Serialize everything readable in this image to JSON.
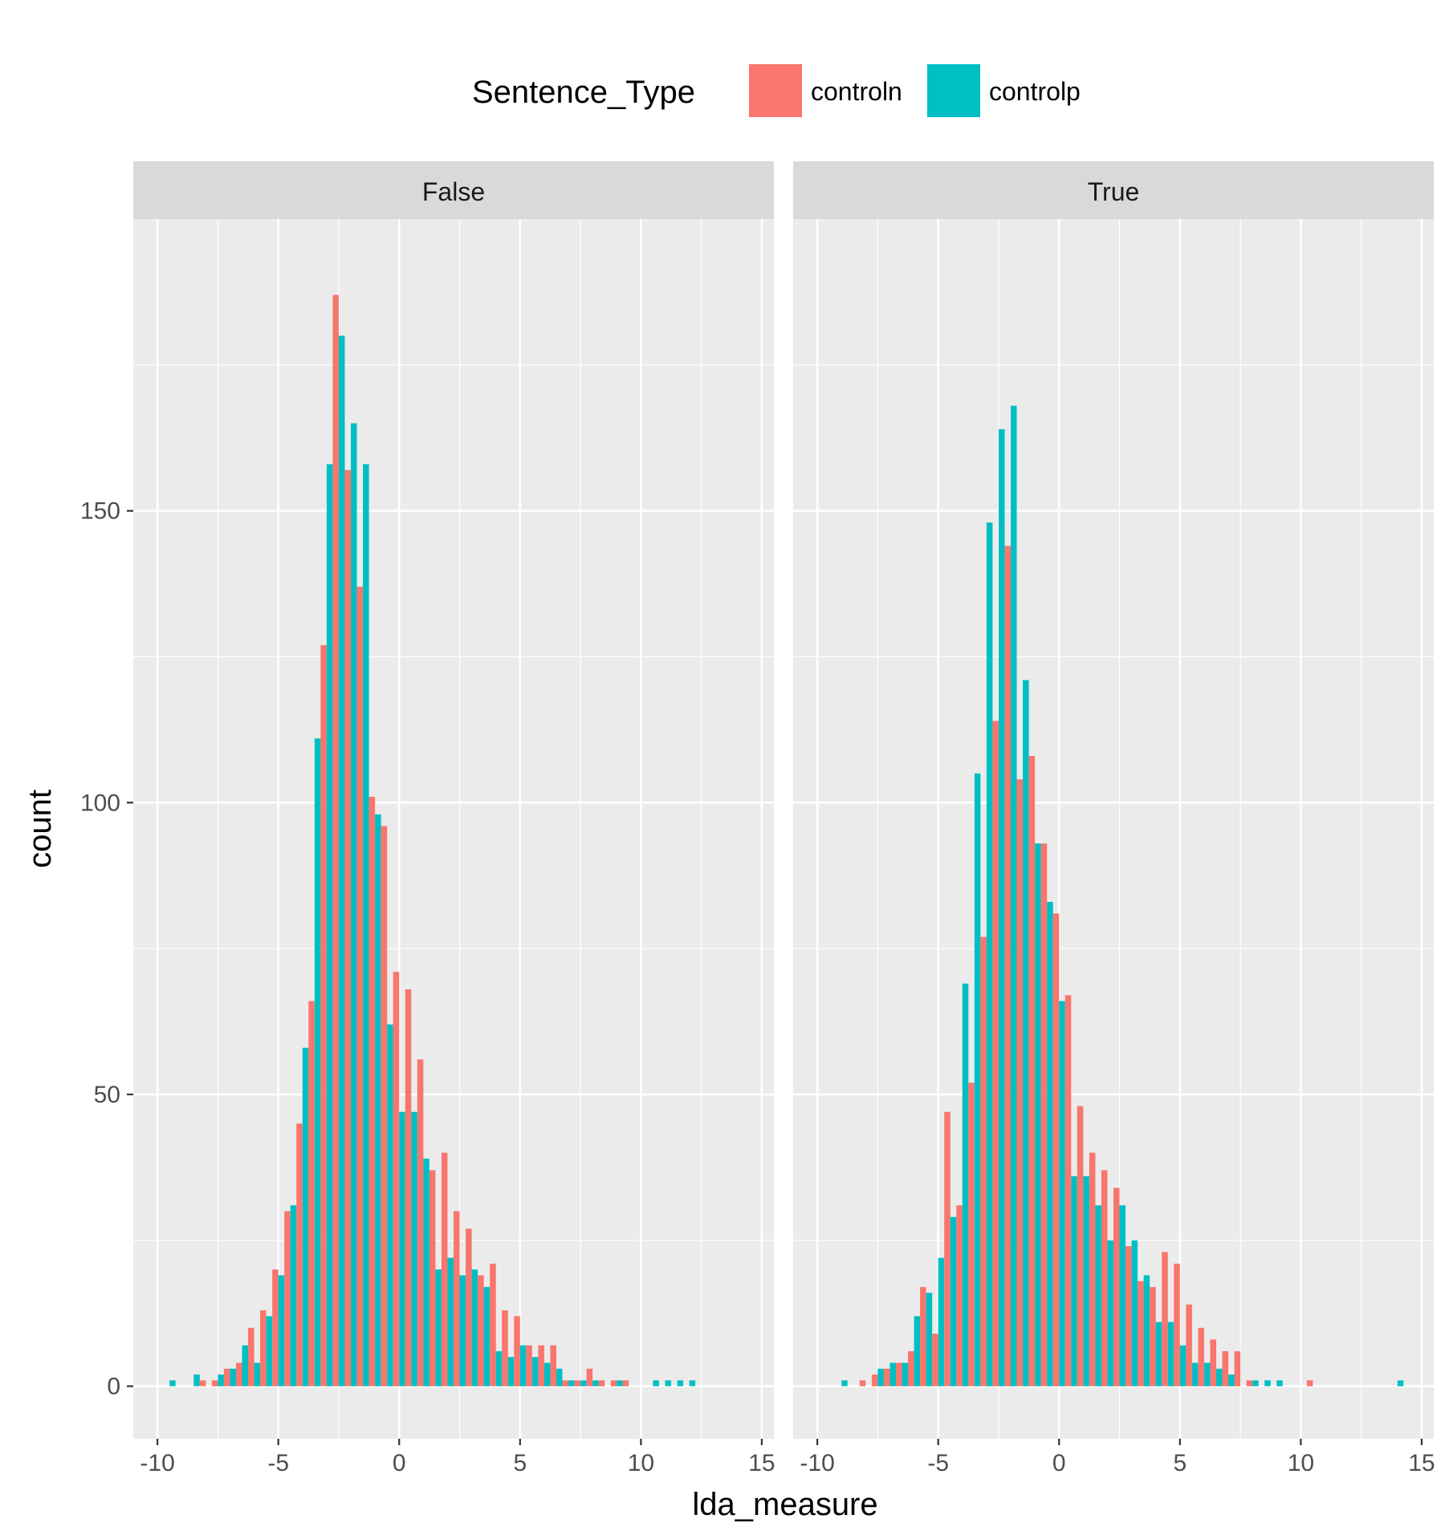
{
  "chart_data": {
    "type": "bar",
    "xlabel": "lda_measure",
    "ylabel": "count",
    "xlim": [
      -11,
      15.5
    ],
    "ylim": [
      -9,
      200
    ],
    "x_ticks": [
      -10,
      -5,
      0,
      5,
      10,
      15
    ],
    "x_tick_labels": [
      "-10",
      "-5",
      "0",
      "5",
      "10",
      "15"
    ],
    "y_ticks": [
      0,
      50,
      100,
      150
    ],
    "y_tick_labels": [
      "0",
      "50",
      "100",
      "150"
    ],
    "bin_width": 0.5,
    "grid": true,
    "legend": {
      "title": "Sentence_Type",
      "position": "top",
      "entries": [
        {
          "name": "controln",
          "color": "#F8766D"
        },
        {
          "name": "controlp",
          "color": "#00BFC4"
        }
      ]
    },
    "facets": [
      {
        "label": "False",
        "bins": [
          -9.5,
          -9.0,
          -8.5,
          -8.0,
          -7.5,
          -7.0,
          -6.5,
          -6.0,
          -5.5,
          -5.0,
          -4.5,
          -4.0,
          -3.5,
          -3.0,
          -2.5,
          -2.0,
          -1.5,
          -1.0,
          -0.5,
          0.0,
          0.5,
          1.0,
          1.5,
          2.0,
          2.5,
          3.0,
          3.5,
          4.0,
          4.5,
          5.0,
          5.5,
          6.0,
          6.5,
          7.0,
          7.5,
          8.0,
          8.5,
          9.0,
          9.5,
          10.0,
          10.5,
          11.0,
          11.5,
          12.0
        ],
        "series": [
          {
            "name": "controln",
            "values": [
              0,
              0,
              0,
              1,
              1,
              3,
              4,
              10,
              13,
              20,
              30,
              45,
              66,
              127,
              187,
              157,
              137,
              101,
              96,
              71,
              68,
              56,
              37,
              40,
              30,
              27,
              19,
              21,
              13,
              12,
              7,
              7,
              7,
              1,
              1,
              3,
              1,
              1,
              1,
              0,
              0,
              0,
              0,
              0
            ]
          },
          {
            "name": "controlp",
            "values": [
              1,
              0,
              2,
              0,
              2,
              3,
              7,
              4,
              12,
              19,
              31,
              58,
              111,
              158,
              180,
              165,
              158,
              98,
              62,
              47,
              47,
              39,
              20,
              22,
              19,
              20,
              17,
              6,
              5,
              7,
              5,
              4,
              3,
              1,
              1,
              1,
              0,
              1,
              0,
              0,
              1,
              1,
              1,
              1
            ]
          }
        ]
      },
      {
        "label": "True",
        "bins": [
          -9.0,
          -8.5,
          -8.0,
          -7.5,
          -7.0,
          -6.5,
          -6.0,
          -5.5,
          -5.0,
          -4.5,
          -4.0,
          -3.5,
          -3.0,
          -2.5,
          -2.0,
          -1.5,
          -1.0,
          -0.5,
          0.0,
          0.5,
          1.0,
          1.5,
          2.0,
          2.5,
          3.0,
          3.5,
          4.0,
          4.5,
          5.0,
          5.5,
          6.0,
          6.5,
          7.0,
          7.5,
          8.0,
          8.5,
          9.0,
          9.5,
          10.0,
          10.5,
          11.0,
          11.5,
          12.0,
          12.5,
          13.0,
          13.5,
          14.0
        ],
        "series": [
          {
            "name": "controln",
            "values": [
              0,
              0,
              1,
              2,
              3,
              4,
              6,
              17,
              9,
              47,
              31,
              52,
              77,
              114,
              144,
              104,
              108,
              93,
              81,
              67,
              48,
              40,
              37,
              34,
              24,
              18,
              17,
              23,
              21,
              14,
              10,
              8,
              6,
              6,
              1,
              0,
              0,
              0,
              0,
              1,
              0,
              0,
              0,
              0,
              0,
              0,
              0
            ]
          },
          {
            "name": "controlp",
            "values": [
              1,
              0,
              0,
              3,
              4,
              4,
              12,
              16,
              22,
              29,
              69,
              105,
              148,
              164,
              168,
              121,
              93,
              83,
              66,
              36,
              36,
              31,
              25,
              31,
              25,
              19,
              11,
              11,
              7,
              4,
              4,
              3,
              2,
              0,
              1,
              1,
              1,
              0,
              0,
              0,
              0,
              0,
              0,
              0,
              0,
              0,
              1
            ]
          }
        ]
      }
    ]
  }
}
